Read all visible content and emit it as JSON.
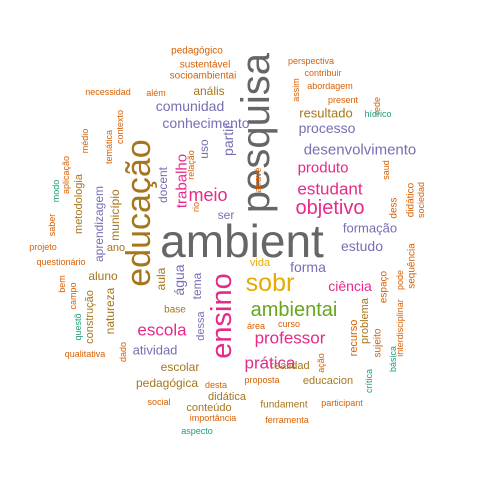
{
  "palette": {
    "gray": "#666666",
    "olive": "#A6761D",
    "magenta": "#E7298A",
    "orange": "#D95F02",
    "purple": "#7570B3",
    "gold": "#E6AB02",
    "green": "#66A61E",
    "teal": "#1B9E77"
  },
  "words": [
    {
      "text": "ambient",
      "color": "gray"
    },
    {
      "text": "pesquisa",
      "color": "gray"
    },
    {
      "text": "educação",
      "color": "olive"
    },
    {
      "text": "ensino",
      "color": "magenta"
    },
    {
      "text": "sobr",
      "color": "gold"
    },
    {
      "text": "ambientai",
      "color": "green"
    },
    {
      "text": "professor",
      "color": "magenta"
    },
    {
      "text": "objetivo",
      "color": "magenta"
    },
    {
      "text": "estudant",
      "color": "magenta"
    },
    {
      "text": "meio",
      "color": "magenta"
    },
    {
      "text": "trabalho",
      "color": "magenta"
    },
    {
      "text": "prática",
      "color": "magenta"
    },
    {
      "text": "escola",
      "color": "magenta"
    },
    {
      "text": "produto",
      "color": "magenta"
    },
    {
      "text": "ciência",
      "color": "magenta"
    },
    {
      "text": "desenvolvimento",
      "color": "purple"
    },
    {
      "text": "processo",
      "color": "purple"
    },
    {
      "text": "conhecimento",
      "color": "purple"
    },
    {
      "text": "comunidad",
      "color": "purple"
    },
    {
      "text": "forma",
      "color": "purple"
    },
    {
      "text": "formação",
      "color": "purple"
    },
    {
      "text": "estudo",
      "color": "purple"
    },
    {
      "text": "atividad",
      "color": "purple"
    },
    {
      "text": "ser",
      "color": "purple"
    },
    {
      "text": "água",
      "color": "purple"
    },
    {
      "text": "aprendizagem",
      "color": "purple"
    },
    {
      "text": "docent",
      "color": "purple"
    },
    {
      "text": "uso",
      "color": "purple"
    },
    {
      "text": "partir",
      "color": "purple"
    },
    {
      "text": "tema",
      "color": "purple"
    },
    {
      "text": "dessa",
      "color": "purple"
    },
    {
      "text": "município",
      "color": "olive"
    },
    {
      "text": "resultado",
      "color": "olive"
    },
    {
      "text": "aluno",
      "color": "olive"
    },
    {
      "text": "natureza",
      "color": "olive"
    },
    {
      "text": "aula",
      "color": "olive"
    },
    {
      "text": "escolar",
      "color": "olive"
    },
    {
      "text": "realidad",
      "color": "olive"
    },
    {
      "text": "anális",
      "color": "olive"
    },
    {
      "text": "pedagógica",
      "color": "olive"
    },
    {
      "text": "didática",
      "color": "olive"
    },
    {
      "text": "conteúdo",
      "color": "olive"
    },
    {
      "text": "educacion",
      "color": "olive"
    },
    {
      "text": "construção",
      "color": "olive"
    },
    {
      "text": "problema",
      "color": "olive"
    },
    {
      "text": "vida",
      "color": "gold"
    },
    {
      "text": "recurso",
      "color": "orange"
    },
    {
      "text": "espaço",
      "color": "orange"
    },
    {
      "text": "sujeito",
      "color": "orange"
    },
    {
      "text": "metodologia",
      "color": "olive"
    },
    {
      "text": "ano",
      "color": "olive"
    },
    {
      "text": "base",
      "color": "olive"
    },
    {
      "text": "fundament",
      "color": "olive"
    },
    {
      "text": "pedagógico",
      "color": "orange"
    },
    {
      "text": "sustentável",
      "color": "orange"
    },
    {
      "text": "socioambientai",
      "color": "orange"
    },
    {
      "text": "necessidad",
      "color": "orange"
    },
    {
      "text": "além",
      "color": "orange"
    },
    {
      "text": "médio",
      "color": "orange"
    },
    {
      "text": "temática",
      "color": "orange"
    },
    {
      "text": "contexto",
      "color": "orange"
    },
    {
      "text": "relação",
      "color": "orange"
    },
    {
      "text": "rio",
      "color": "orange"
    },
    {
      "text": "atravé",
      "color": "orange"
    },
    {
      "text": "perspectiva",
      "color": "orange"
    },
    {
      "text": "contribuir",
      "color": "orange"
    },
    {
      "text": "abordagem",
      "color": "orange"
    },
    {
      "text": "present",
      "color": "orange"
    },
    {
      "text": "assim",
      "color": "orange"
    },
    {
      "text": "rede",
      "color": "orange"
    },
    {
      "text": "hídrico",
      "color": "teal"
    },
    {
      "text": "saud",
      "color": "orange"
    },
    {
      "text": "dess",
      "color": "orange"
    },
    {
      "text": "didático",
      "color": "orange"
    },
    {
      "text": "sociedad",
      "color": "orange"
    },
    {
      "text": "sequência",
      "color": "orange"
    },
    {
      "text": "pode",
      "color": "orange"
    },
    {
      "text": "interdisciplinar",
      "color": "orange"
    },
    {
      "text": "ação",
      "color": "orange"
    },
    {
      "text": "crítica",
      "color": "teal"
    },
    {
      "text": "básica",
      "color": "teal"
    },
    {
      "text": "modo",
      "color": "teal"
    },
    {
      "text": "aplicação",
      "color": "orange"
    },
    {
      "text": "saber",
      "color": "orange"
    },
    {
      "text": "projeto",
      "color": "orange"
    },
    {
      "text": "questionário",
      "color": "orange"
    },
    {
      "text": "bem",
      "color": "orange"
    },
    {
      "text": "campo",
      "color": "orange"
    },
    {
      "text": "questõ",
      "color": "teal"
    },
    {
      "text": "qualitativa",
      "color": "orange"
    },
    {
      "text": "dado",
      "color": "orange"
    },
    {
      "text": "área",
      "color": "orange"
    },
    {
      "text": "curso",
      "color": "orange"
    },
    {
      "text": "proposta",
      "color": "orange"
    },
    {
      "text": "desta",
      "color": "orange"
    },
    {
      "text": "social",
      "color": "orange"
    },
    {
      "text": "participant",
      "color": "orange"
    },
    {
      "text": "importância",
      "color": "orange"
    },
    {
      "text": "ferramenta",
      "color": "orange"
    },
    {
      "text": "aspecto",
      "color": "teal"
    }
  ]
}
